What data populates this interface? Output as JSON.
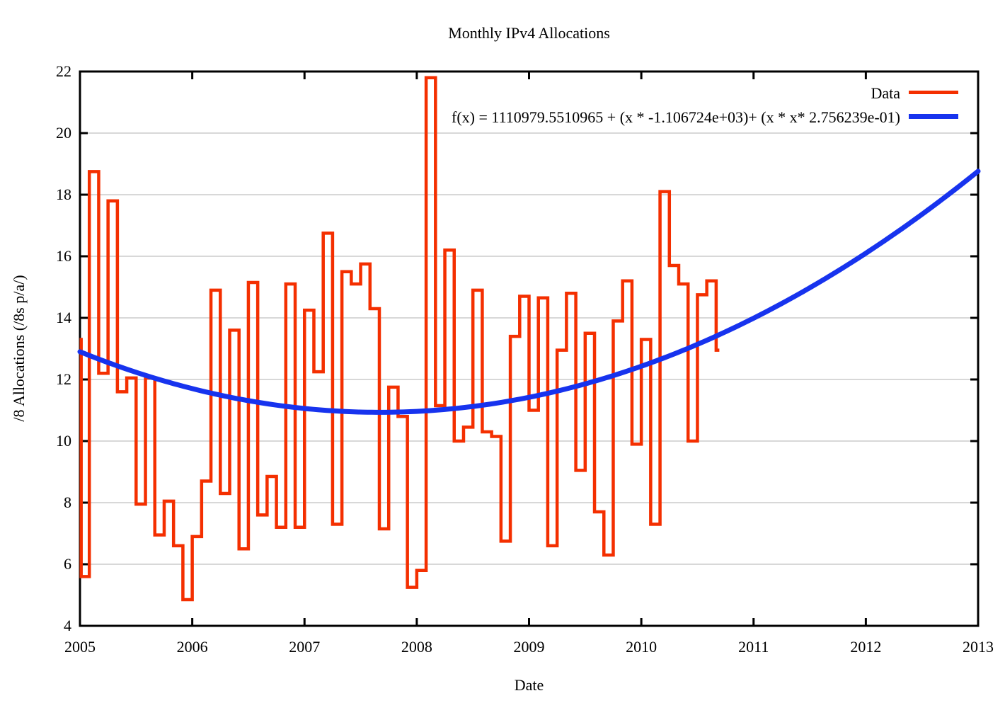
{
  "title": "Monthly IPv4 Allocations",
  "axes": {
    "xlabel": "Date",
    "ylabel": "/8 Allocations (/8s p/a/)",
    "x_ticks": [
      2005,
      2006,
      2007,
      2008,
      2009,
      2010,
      2011,
      2012,
      2013
    ],
    "y_ticks": [
      4,
      6,
      8,
      10,
      12,
      14,
      16,
      18,
      20,
      22
    ]
  },
  "legend": {
    "position": "top-right inside",
    "data_label": "Data",
    "fit_label": "f(x) = 1110979.5510965 + (x * -1.106724e+03)+ (x * x* 2.756239e-01)"
  },
  "colors": {
    "data_series": "#f42f00",
    "fit_curve": "#1733ee",
    "grid": "#d8d8d8",
    "axis": "#000000",
    "background": "#ffffff"
  },
  "chart_data": {
    "type": "line",
    "title": "Monthly IPv4 Allocations",
    "xlabel": "Date",
    "ylabel": "/8 Allocations (/8s p/a/)",
    "xlim": [
      2005,
      2013
    ],
    "ylim": [
      4,
      22
    ],
    "grid": "horizontal gridlines only",
    "legend_position": "top-right inside",
    "series": [
      {
        "name": "Data",
        "style": "histeps-monthly",
        "color": "#f42f00",
        "start_month": "2005-01",
        "end_month": "2010-09",
        "lead_in_edge_value": 13.35,
        "last_bin_truncated": true,
        "values": [
          5.6,
          18.75,
          12.2,
          17.8,
          11.6,
          12.05,
          7.95,
          12.05,
          6.95,
          8.05,
          6.6,
          4.85,
          6.9,
          8.7,
          14.9,
          8.3,
          13.6,
          6.5,
          15.15,
          7.6,
          8.85,
          7.2,
          15.1,
          7.2,
          14.25,
          12.25,
          16.75,
          7.3,
          15.5,
          15.1,
          15.75,
          14.3,
          7.15,
          11.75,
          10.8,
          5.25,
          5.8,
          21.8,
          11.15,
          16.2,
          10.0,
          10.45,
          14.9,
          10.3,
          10.15,
          6.75,
          13.4,
          14.7,
          11.0,
          14.65,
          6.6,
          12.95,
          14.8,
          9.05,
          13.5,
          7.7,
          6.3,
          13.9,
          15.2,
          9.9,
          13.3,
          7.3,
          18.1,
          15.7,
          15.1,
          10.0,
          14.75,
          15.2,
          12.95
        ]
      },
      {
        "name": "fit",
        "style": "quadratic-curve",
        "color": "#1733ee",
        "equation": "f(x) = 1110979.5510965 + (x * -1.106724e+03)+ (x * x* 2.756239e-01)",
        "coefficients": {
          "c0": 1110979.5510965,
          "c1": -1106.724,
          "c2": 0.2756239
        },
        "x_range": [
          2005,
          2013
        ]
      }
    ]
  }
}
